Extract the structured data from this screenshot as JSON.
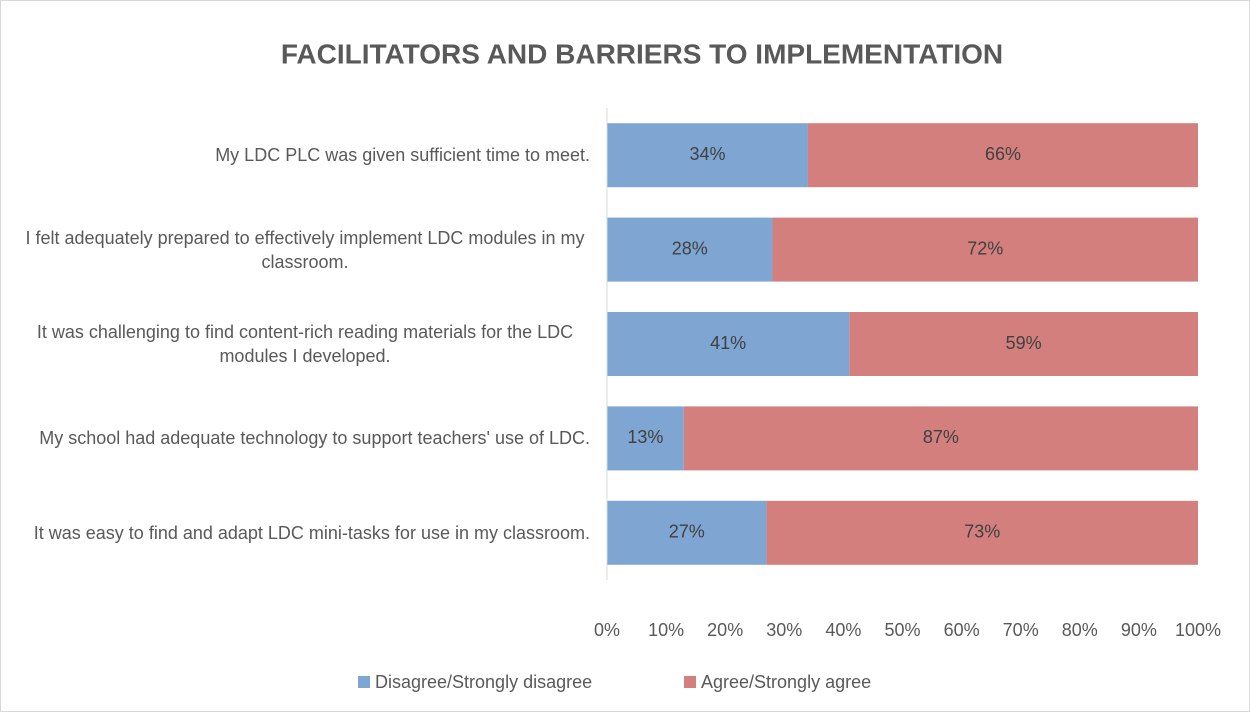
{
  "chart_data": {
    "type": "stacked-bar-horizontal",
    "title": "FACILITATORS AND BARRIERS TO IMPLEMENTATION",
    "categories": [
      "My LDC PLC was given sufficient time to meet.",
      "I felt adequately prepared to effectively implement LDC modules in my classroom.",
      "It was challenging to find content-rich reading materials for the LDC modules I developed.",
      "My school had adequate technology to support teachers' use of LDC.",
      "It was easy to find and adapt LDC mini-tasks for use in my classroom."
    ],
    "series": [
      {
        "name": "Disagree/Strongly disagree",
        "color": "#7fa6d3",
        "values": [
          34,
          28,
          41,
          13,
          27
        ],
        "value_labels": [
          "34%",
          "28%",
          "41%",
          "13%",
          "27%"
        ]
      },
      {
        "name": "Agree/Strongly agree",
        "color": "#d27f7e",
        "values": [
          66,
          72,
          59,
          87,
          73
        ],
        "value_labels": [
          "66%",
          "72%",
          "59%",
          "87%",
          "73%"
        ]
      }
    ],
    "xlim": [
      0,
      100
    ],
    "xticks": [
      {
        "value": 0,
        "label": "0%"
      },
      {
        "value": 10,
        "label": "10%"
      },
      {
        "value": 20,
        "label": "20%"
      },
      {
        "value": 30,
        "label": "30%"
      },
      {
        "value": 40,
        "label": "40%"
      },
      {
        "value": 50,
        "label": "50%"
      },
      {
        "value": 60,
        "label": "60%"
      },
      {
        "value": 70,
        "label": "70%"
      },
      {
        "value": 80,
        "label": "80%"
      },
      {
        "value": 90,
        "label": "90%"
      },
      {
        "value": 100,
        "label": "100%"
      }
    ],
    "grid": false,
    "legend": "bottom"
  }
}
